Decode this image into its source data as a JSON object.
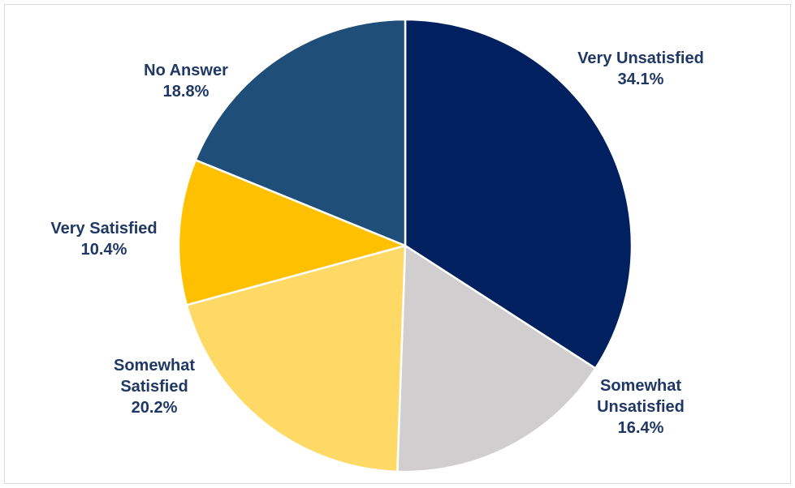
{
  "chart_data": {
    "type": "pie",
    "title": "",
    "start_angle_deg": 0,
    "direction": "clockwise",
    "slices": [
      {
        "label": [
          "Very Unsatisfied"
        ],
        "value": 34.1,
        "value_label": "34.1%",
        "color": "#002060"
      },
      {
        "label": [
          "Somewhat",
          "Unsatisfied"
        ],
        "value": 16.4,
        "value_label": "16.4%",
        "color": "#d0cece"
      },
      {
        "label": [
          "Somewhat",
          "Satisfied"
        ],
        "value": 20.2,
        "value_label": "20.2%",
        "color": "#ffd966"
      },
      {
        "label": [
          "Very Satisfied"
        ],
        "value": 10.4,
        "value_label": "10.4%",
        "color": "#ffc000"
      },
      {
        "label": [
          "No Answer"
        ],
        "value": 18.8,
        "value_label": "18.8%",
        "color": "#1f4e79"
      }
    ],
    "label_color": "#1f3864"
  }
}
